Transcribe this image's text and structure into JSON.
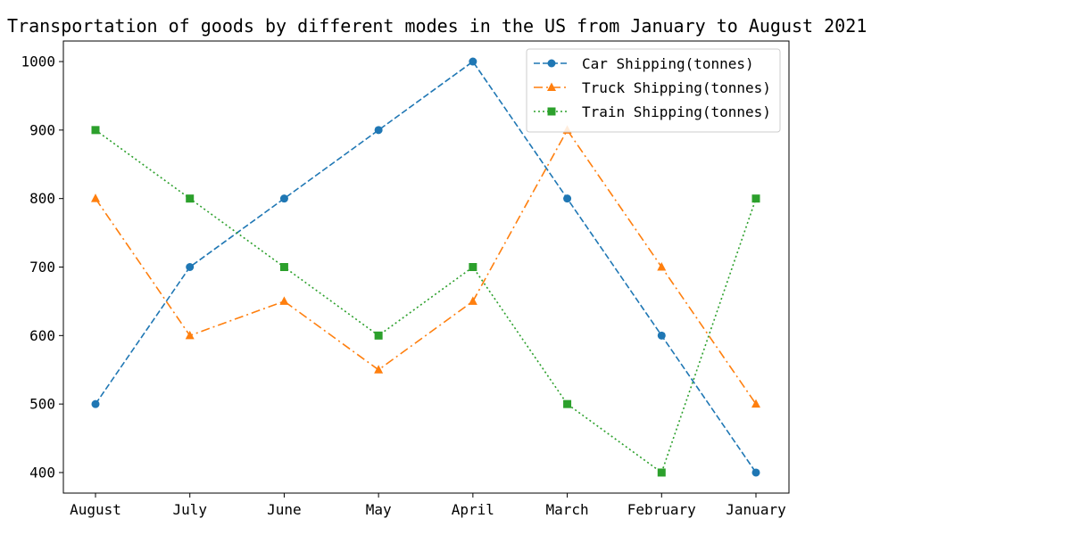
{
  "chart_data": {
    "type": "line",
    "title": "Transportation of goods by different modes in the US from January to August 2021",
    "xlabel": "",
    "ylabel": "",
    "categories": [
      "August",
      "July",
      "June",
      "May",
      "April",
      "March",
      "February",
      "January"
    ],
    "ylim": [
      370,
      1030
    ],
    "yticks": [
      400,
      500,
      600,
      700,
      800,
      900,
      1000
    ],
    "grid": false,
    "legend_position": "top-right",
    "series": [
      {
        "name": "Car Shipping(tonnes)",
        "values": [
          500,
          700,
          800,
          900,
          1000,
          800,
          600,
          400
        ],
        "color": "#1f77b4",
        "line_style": "dashed",
        "marker": "circle"
      },
      {
        "name": "Truck Shipping(tonnes)",
        "values": [
          800,
          600,
          650,
          550,
          650,
          900,
          700,
          500
        ],
        "color": "#ff7f0e",
        "line_style": "dashdot",
        "marker": "triangle"
      },
      {
        "name": "Train Shipping(tonnes)",
        "values": [
          900,
          800,
          700,
          600,
          700,
          500,
          400,
          800
        ],
        "color": "#2ca02c",
        "line_style": "dotted",
        "marker": "square"
      }
    ]
  }
}
